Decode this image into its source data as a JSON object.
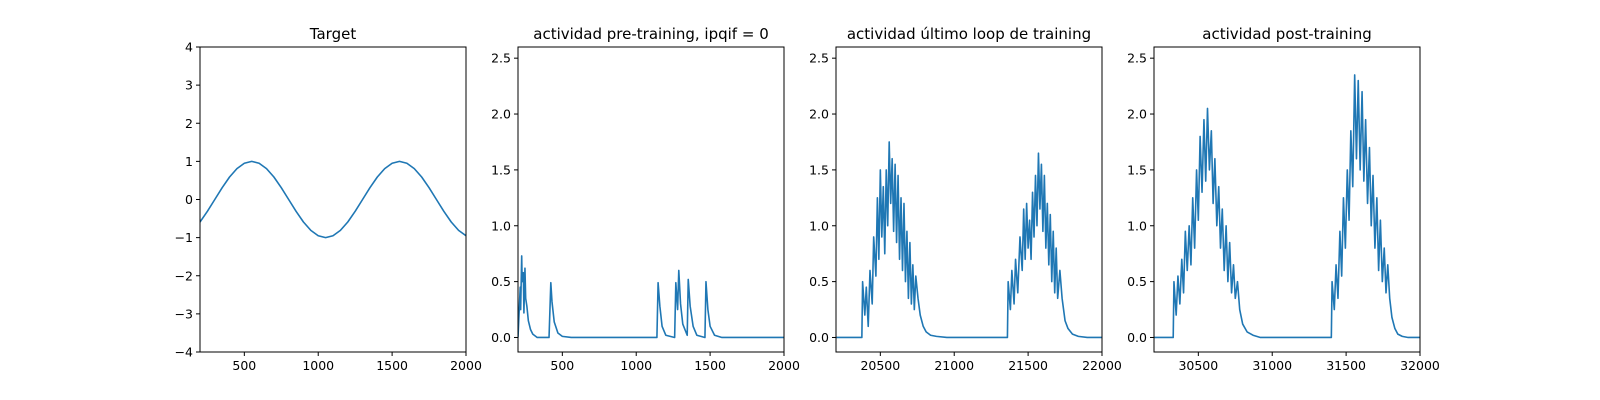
{
  "chart_data": [
    {
      "type": "line",
      "title": "Target",
      "xlim": [
        200,
        2000
      ],
      "ylim": [
        -4,
        4
      ],
      "xticks": [
        500,
        1000,
        1500,
        2000
      ],
      "yticks": [
        -4,
        -3,
        -2,
        -1,
        0,
        1,
        2,
        3,
        4
      ],
      "xtick_labels": [
        "500",
        "1000",
        "1500",
        "2000"
      ],
      "ytick_labels": [
        "−4",
        "−3",
        "−2",
        "−1",
        "0",
        "1",
        "2",
        "3",
        "4"
      ],
      "series": [
        {
          "color": "#1f77b4",
          "x": [
            200,
            250,
            300,
            350,
            400,
            450,
            500,
            550,
            600,
            650,
            700,
            750,
            800,
            850,
            900,
            950,
            1000,
            1050,
            1100,
            1150,
            1200,
            1250,
            1300,
            1350,
            1400,
            1450,
            1500,
            1550,
            1600,
            1650,
            1700,
            1750,
            1800,
            1850,
            1900,
            1950,
            2000
          ],
          "y": [
            -0.59,
            -0.31,
            0.0,
            0.31,
            0.59,
            0.81,
            0.95,
            1.0,
            0.95,
            0.81,
            0.59,
            0.31,
            0.0,
            -0.31,
            -0.59,
            -0.81,
            -0.95,
            -1.0,
            -0.95,
            -0.81,
            -0.59,
            -0.31,
            0.0,
            0.31,
            0.59,
            0.81,
            0.95,
            1.0,
            0.95,
            0.81,
            0.59,
            0.31,
            0.0,
            -0.31,
            -0.59,
            -0.81,
            -0.95
          ]
        }
      ]
    },
    {
      "type": "line",
      "title": "actividad pre-training, ipqif = 0",
      "xlim": [
        200,
        2000
      ],
      "ylim": [
        -0.13,
        2.6
      ],
      "xticks": [
        500,
        1000,
        1500,
        2000
      ],
      "yticks": [
        0.0,
        0.5,
        1.0,
        1.5,
        2.0,
        2.5
      ],
      "xtick_labels": [
        "500",
        "1000",
        "1500",
        "2000"
      ],
      "ytick_labels": [
        "0.0",
        "0.5",
        "1.0",
        "1.5",
        "2.0",
        "2.5"
      ],
      "series": [
        {
          "color": "#1f77b4",
          "x": [
            200,
            215,
            218,
            225,
            228,
            236,
            240,
            247,
            252,
            260,
            270,
            285,
            300,
            330,
            410,
            422,
            430,
            445,
            470,
            500,
            560,
            1140,
            1148,
            1160,
            1175,
            1200,
            1260,
            1268,
            1280,
            1288,
            1300,
            1315,
            1345,
            1352,
            1365,
            1385,
            1410,
            1465,
            1472,
            1485,
            1500,
            1530,
            1580,
            2000
          ],
          "y": [
            0.0,
            0.45,
            0.25,
            0.73,
            0.5,
            0.58,
            0.22,
            0.62,
            0.35,
            0.28,
            0.15,
            0.07,
            0.03,
            0.0,
            0.0,
            0.49,
            0.32,
            0.14,
            0.04,
            0.01,
            0.0,
            0.0,
            0.49,
            0.28,
            0.1,
            0.02,
            0.0,
            0.49,
            0.25,
            0.6,
            0.3,
            0.12,
            0.02,
            0.52,
            0.28,
            0.1,
            0.02,
            0.0,
            0.5,
            0.25,
            0.1,
            0.02,
            0.0,
            0.0
          ]
        }
      ]
    },
    {
      "type": "line",
      "title": "actividad último loop de training",
      "xlim": [
        20200,
        22000
      ],
      "ylim": [
        -0.13,
        2.6
      ],
      "xticks": [
        20500,
        21000,
        21500,
        22000
      ],
      "yticks": [
        0.0,
        0.5,
        1.0,
        1.5,
        2.0,
        2.5
      ],
      "xtick_labels": [
        "20500",
        "21000",
        "21500",
        "22000"
      ],
      "ytick_labels": [
        "0.0",
        "0.5",
        "1.0",
        "1.5",
        "2.0",
        "2.5"
      ],
      "series": [
        {
          "color": "#1f77b4",
          "x": [
            20200,
            20375,
            20380,
            20395,
            20405,
            20418,
            20430,
            20445,
            20455,
            20470,
            20480,
            20490,
            20500,
            20510,
            20520,
            20530,
            20540,
            20550,
            20560,
            20570,
            20580,
            20590,
            20600,
            20610,
            20620,
            20630,
            20640,
            20650,
            20660,
            20670,
            20680,
            20690,
            20700,
            20710,
            20720,
            20730,
            20740,
            20755,
            20770,
            20790,
            20810,
            20840,
            20880,
            20950,
            21360,
            21365,
            21380,
            21390,
            21405,
            21415,
            21430,
            21445,
            21460,
            21470,
            21480,
            21490,
            21500,
            21510,
            21520,
            21530,
            21540,
            21550,
            21560,
            21570,
            21580,
            21590,
            21600,
            21610,
            21620,
            21630,
            21640,
            21650,
            21660,
            21670,
            21680,
            21690,
            21700,
            21715,
            21730,
            21750,
            21770,
            21800,
            21840,
            21900,
            22000
          ],
          "y": [
            0.0,
            0.0,
            0.5,
            0.2,
            0.45,
            0.1,
            0.6,
            0.3,
            0.9,
            0.55,
            1.25,
            0.7,
            1.5,
            0.9,
            1.35,
            0.75,
            1.5,
            1.0,
            1.75,
            1.2,
            1.6,
            0.95,
            1.55,
            0.85,
            1.45,
            0.7,
            1.25,
            0.6,
            1.2,
            0.5,
            0.95,
            0.35,
            0.85,
            0.3,
            0.65,
            0.25,
            0.55,
            0.35,
            0.2,
            0.1,
            0.05,
            0.02,
            0.01,
            0.0,
            0.0,
            0.5,
            0.25,
            0.6,
            0.3,
            0.7,
            0.4,
            0.9,
            0.6,
            1.15,
            0.7,
            1.2,
            0.8,
            1.05,
            0.7,
            1.3,
            0.9,
            1.45,
            1.0,
            1.65,
            1.15,
            1.55,
            0.95,
            1.45,
            0.8,
            1.2,
            0.65,
            1.1,
            0.5,
            0.95,
            0.4,
            0.8,
            0.35,
            0.6,
            0.35,
            0.15,
            0.08,
            0.03,
            0.01,
            0.0,
            0.0
          ]
        }
      ]
    },
    {
      "type": "line",
      "title": "actividad post-training",
      "xlim": [
        30200,
        32000
      ],
      "ylim": [
        -0.13,
        2.6
      ],
      "xticks": [
        30500,
        31000,
        31500,
        32000
      ],
      "yticks": [
        0.0,
        0.5,
        1.0,
        1.5,
        2.0,
        2.5
      ],
      "xtick_labels": [
        "30500",
        "31000",
        "31500",
        "32000"
      ],
      "ytick_labels": [
        "0.0",
        "0.5",
        "1.0",
        "1.5",
        "2.0",
        "2.5"
      ],
      "series": [
        {
          "color": "#1f77b4",
          "x": [
            30200,
            30330,
            30335,
            30350,
            30362,
            30375,
            30388,
            30400,
            30412,
            30425,
            30438,
            30450,
            30462,
            30475,
            30488,
            30500,
            30512,
            30525,
            30538,
            30550,
            30562,
            30575,
            30588,
            30600,
            30612,
            30625,
            30638,
            30650,
            30662,
            30675,
            30688,
            30700,
            30712,
            30725,
            30738,
            30750,
            30765,
            30780,
            30800,
            30830,
            30870,
            30920,
            31000,
            31400,
            31405,
            31420,
            31432,
            31445,
            31458,
            31470,
            31482,
            31495,
            31508,
            31520,
            31532,
            31545,
            31558,
            31570,
            31582,
            31595,
            31608,
            31620,
            31632,
            31645,
            31658,
            31670,
            31682,
            31695,
            31708,
            31720,
            31732,
            31745,
            31758,
            31770,
            31782,
            31795,
            31810,
            31830,
            31850,
            31880,
            31920,
            32000
          ],
          "y": [
            0.0,
            0.0,
            0.5,
            0.2,
            0.55,
            0.3,
            0.7,
            0.4,
            0.95,
            0.6,
            1.0,
            0.65,
            1.25,
            0.8,
            1.5,
            1.05,
            1.8,
            1.3,
            1.95,
            1.4,
            2.05,
            1.5,
            1.85,
            1.2,
            1.6,
            1.0,
            1.35,
            0.8,
            1.15,
            0.6,
            1.0,
            0.5,
            0.85,
            0.4,
            0.65,
            0.35,
            0.5,
            0.25,
            0.12,
            0.05,
            0.02,
            0.0,
            0.0,
            0.0,
            0.5,
            0.25,
            0.65,
            0.35,
            0.95,
            0.55,
            1.25,
            0.8,
            1.5,
            1.05,
            1.85,
            1.35,
            2.35,
            1.6,
            2.3,
            1.5,
            2.2,
            1.4,
            1.95,
            1.2,
            1.7,
            1.0,
            1.45,
            0.8,
            1.25,
            0.6,
            1.05,
            0.5,
            0.8,
            0.4,
            0.65,
            0.35,
            0.18,
            0.08,
            0.03,
            0.01,
            0.0,
            0.0
          ]
        }
      ]
    }
  ]
}
